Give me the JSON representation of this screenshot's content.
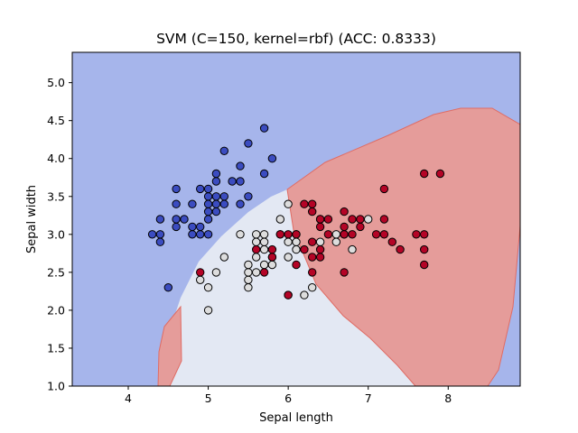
{
  "chart_data": {
    "type": "scatter",
    "title": "SVM (C=150, kernel=rbf) (ACC: 0.8333)",
    "xlabel": "Sepal length",
    "ylabel": "Sepal width",
    "xlim": [
      3.3,
      8.9
    ],
    "ylim": [
      1.0,
      5.4
    ],
    "xticks": [
      "4",
      "5",
      "6",
      "7",
      "8"
    ],
    "yticks": [
      "1.0",
      "1.5",
      "2.0",
      "2.5",
      "3.0",
      "3.5",
      "4.0",
      "4.5",
      "5.0"
    ],
    "grid": false,
    "background_regions": {
      "class_0": "#a6b5eb",
      "class_1": "#e3e8f3",
      "class_2": "#e59c9a"
    },
    "series": [
      {
        "color": "#3b4cc0",
        "points": [
          [
            4.3,
            3.0
          ],
          [
            4.4,
            2.9
          ],
          [
            4.4,
            3.0
          ],
          [
            4.4,
            3.2
          ],
          [
            4.5,
            2.3
          ],
          [
            4.6,
            3.1
          ],
          [
            4.6,
            3.2
          ],
          [
            4.6,
            3.4
          ],
          [
            4.6,
            3.6
          ],
          [
            4.7,
            3.2
          ],
          [
            4.8,
            3.0
          ],
          [
            4.8,
            3.1
          ],
          [
            4.8,
            3.4
          ],
          [
            4.9,
            3.0
          ],
          [
            4.9,
            3.1
          ],
          [
            4.9,
            3.6
          ],
          [
            5.0,
            3.0
          ],
          [
            5.0,
            3.2
          ],
          [
            5.0,
            3.3
          ],
          [
            5.0,
            3.4
          ],
          [
            5.0,
            3.5
          ],
          [
            5.0,
            3.6
          ],
          [
            5.1,
            3.3
          ],
          [
            5.1,
            3.4
          ],
          [
            5.1,
            3.5
          ],
          [
            5.1,
            3.7
          ],
          [
            5.1,
            3.8
          ],
          [
            5.2,
            3.4
          ],
          [
            5.2,
            3.5
          ],
          [
            5.2,
            4.1
          ],
          [
            5.3,
            3.7
          ],
          [
            5.4,
            3.4
          ],
          [
            5.4,
            3.7
          ],
          [
            5.4,
            3.9
          ],
          [
            5.5,
            3.5
          ],
          [
            5.5,
            4.2
          ],
          [
            5.7,
            3.8
          ],
          [
            5.7,
            4.4
          ],
          [
            5.8,
            4.0
          ]
        ]
      },
      {
        "color": "#dddddd",
        "points": [
          [
            4.9,
            2.4
          ],
          [
            5.0,
            2.0
          ],
          [
            5.0,
            2.3
          ],
          [
            5.1,
            2.5
          ],
          [
            5.2,
            2.7
          ],
          [
            5.4,
            3.0
          ],
          [
            5.5,
            2.3
          ],
          [
            5.5,
            2.4
          ],
          [
            5.5,
            2.5
          ],
          [
            5.5,
            2.6
          ],
          [
            5.6,
            2.5
          ],
          [
            5.6,
            2.7
          ],
          [
            5.6,
            2.9
          ],
          [
            5.6,
            3.0
          ],
          [
            5.7,
            2.6
          ],
          [
            5.7,
            2.8
          ],
          [
            5.7,
            2.9
          ],
          [
            5.7,
            3.0
          ],
          [
            5.8,
            2.6
          ],
          [
            5.8,
            2.7
          ],
          [
            5.9,
            3.0
          ],
          [
            5.9,
            3.2
          ],
          [
            6.0,
            2.2
          ],
          [
            6.0,
            2.7
          ],
          [
            6.0,
            2.9
          ],
          [
            6.0,
            3.4
          ],
          [
            6.1,
            2.8
          ],
          [
            6.1,
            2.9
          ],
          [
            6.1,
            3.0
          ],
          [
            6.2,
            2.2
          ],
          [
            6.3,
            2.3
          ],
          [
            6.4,
            2.9
          ],
          [
            6.4,
            3.2
          ],
          [
            6.6,
            2.9
          ],
          [
            6.6,
            3.0
          ],
          [
            6.7,
            3.0
          ],
          [
            6.8,
            2.8
          ],
          [
            7.0,
            3.2
          ]
        ]
      },
      {
        "color": "#b40426",
        "points": [
          [
            4.9,
            2.5
          ],
          [
            5.6,
            2.8
          ],
          [
            5.7,
            2.5
          ],
          [
            5.8,
            2.7
          ],
          [
            5.8,
            2.8
          ],
          [
            5.9,
            3.0
          ],
          [
            6.0,
            2.2
          ],
          [
            6.0,
            3.0
          ],
          [
            6.1,
            2.6
          ],
          [
            6.1,
            3.0
          ],
          [
            6.2,
            2.8
          ],
          [
            6.2,
            3.4
          ],
          [
            6.3,
            2.5
          ],
          [
            6.3,
            2.7
          ],
          [
            6.3,
            2.9
          ],
          [
            6.3,
            3.3
          ],
          [
            6.3,
            3.4
          ],
          [
            6.4,
            2.7
          ],
          [
            6.4,
            2.8
          ],
          [
            6.4,
            3.1
          ],
          [
            6.4,
            3.2
          ],
          [
            6.5,
            3.0
          ],
          [
            6.5,
            3.2
          ],
          [
            6.7,
            2.5
          ],
          [
            6.7,
            3.0
          ],
          [
            6.7,
            3.1
          ],
          [
            6.7,
            3.3
          ],
          [
            6.8,
            3.0
          ],
          [
            6.8,
            3.2
          ],
          [
            6.9,
            3.1
          ],
          [
            6.9,
            3.2
          ],
          [
            7.1,
            3.0
          ],
          [
            7.2,
            3.0
          ],
          [
            7.2,
            3.2
          ],
          [
            7.2,
            3.6
          ],
          [
            7.3,
            2.9
          ],
          [
            7.4,
            2.8
          ],
          [
            7.6,
            3.0
          ],
          [
            7.7,
            2.6
          ],
          [
            7.7,
            2.8
          ],
          [
            7.7,
            3.0
          ],
          [
            7.7,
            3.8
          ],
          [
            7.9,
            3.8
          ]
        ]
      }
    ]
  }
}
